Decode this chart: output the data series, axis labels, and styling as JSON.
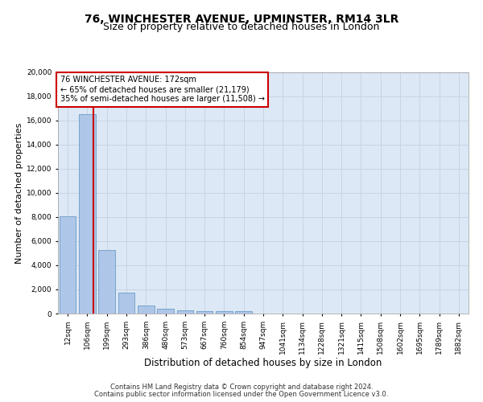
{
  "title_line1": "76, WINCHESTER AVENUE, UPMINSTER, RM14 3LR",
  "title_line2": "Size of property relative to detached houses in London",
  "xlabel": "Distribution of detached houses by size in London",
  "ylabel": "Number of detached properties",
  "footer_line1": "Contains HM Land Registry data © Crown copyright and database right 2024.",
  "footer_line2": "Contains public sector information licensed under the Open Government Licence v3.0.",
  "categories": [
    "12sqm",
    "106sqm",
    "199sqm",
    "293sqm",
    "386sqm",
    "480sqm",
    "573sqm",
    "667sqm",
    "760sqm",
    "854sqm",
    "947sqm",
    "1041sqm",
    "1134sqm",
    "1228sqm",
    "1321sqm",
    "1415sqm",
    "1508sqm",
    "1602sqm",
    "1695sqm",
    "1789sqm",
    "1882sqm"
  ],
  "values": [
    8100,
    16500,
    5300,
    1750,
    700,
    370,
    280,
    220,
    180,
    200,
    0,
    0,
    0,
    0,
    0,
    0,
    0,
    0,
    0,
    0,
    0
  ],
  "bar_color": "#aec6e8",
  "bar_edge_color": "#5a8fc0",
  "property_label": "76 WINCHESTER AVENUE: 172sqm",
  "annotation_line2": "← 65% of detached houses are smaller (21,179)",
  "annotation_line3": "35% of semi-detached houses are larger (11,508) →",
  "annotation_box_color": "#ffffff",
  "annotation_box_edge_color": "#cc0000",
  "red_line_color": "#cc0000",
  "ylim": [
    0,
    20000
  ],
  "yticks": [
    0,
    2000,
    4000,
    6000,
    8000,
    10000,
    12000,
    14000,
    16000,
    18000,
    20000
  ],
  "grid_color": "#c8d4e4",
  "background_color": "#ffffff",
  "plot_background": "#dce8f5",
  "title_fontsize": 10,
  "subtitle_fontsize": 9,
  "axis_label_fontsize": 8.5,
  "ylabel_fontsize": 8,
  "tick_fontsize": 6.5,
  "annotation_fontsize": 7,
  "footer_fontsize": 6
}
